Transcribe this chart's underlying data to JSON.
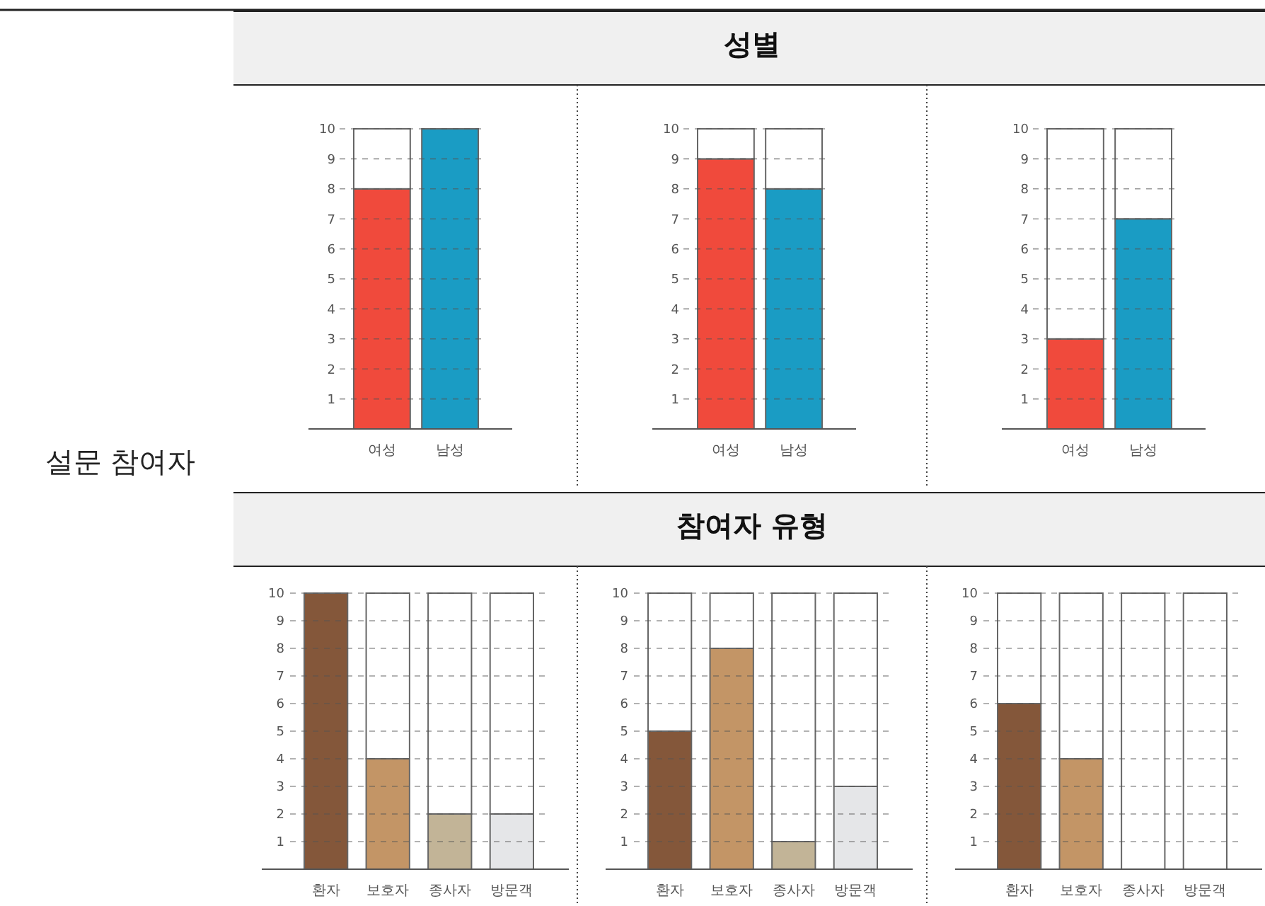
{
  "chart_data": [
    {
      "type": "bar",
      "annotations": [
        "설문 참여자"
      ],
      "categories": [
        "여성",
        "남성"
      ],
      "stacked": true,
      "ylim": [
        0,
        10
      ],
      "yticks": [
        1,
        2,
        3,
        4,
        5,
        6,
        7,
        8,
        9,
        10
      ],
      "grid": "y",
      "series": [
        {
          "colors": [
            "#f04a3c",
            "#1a9cc4"
          ],
          "values": [
            8,
            10
          ]
        },
        {
          "color": "#ffffff",
          "values": [
            2,
            0
          ]
        }
      ]
    },
    {
      "type": "bar",
      "title": "성별",
      "categories": [
        "여성",
        "남성"
      ],
      "stacked": true,
      "ylim": [
        0,
        10
      ],
      "yticks": [
        1,
        2,
        3,
        4,
        5,
        6,
        7,
        8,
        9,
        10
      ],
      "grid": "y",
      "series": [
        {
          "colors": [
            "#f04a3c",
            "#1a9cc4"
          ],
          "values": [
            9,
            8
          ]
        },
        {
          "color": "#ffffff",
          "values": [
            1,
            2
          ]
        }
      ]
    },
    {
      "type": "bar",
      "categories": [
        "여성",
        "남성"
      ],
      "stacked": true,
      "ylim": [
        0,
        10
      ],
      "yticks": [
        1,
        2,
        3,
        4,
        5,
        6,
        7,
        8,
        9,
        10
      ],
      "grid": "y",
      "series": [
        {
          "colors": [
            "#f04a3c",
            "#1a9cc4"
          ],
          "values": [
            3,
            7
          ]
        },
        {
          "color": "#ffffff",
          "values": [
            7,
            3
          ]
        }
      ]
    },
    {
      "type": "bar",
      "categories": [
        "환자",
        "보호자",
        "종사자",
        "방문객"
      ],
      "stacked": true,
      "ylim": [
        0,
        10
      ],
      "yticks": [
        1,
        2,
        3,
        4,
        5,
        6,
        7,
        8,
        9,
        10
      ],
      "grid": "y",
      "series": [
        {
          "colors": [
            "#84573a",
            "#c39566",
            "#c2b497",
            "#e5e6e8"
          ],
          "values": [
            10,
            4,
            2,
            2
          ]
        },
        {
          "color": "#ffffff",
          "values": [
            0,
            6,
            8,
            8
          ]
        }
      ]
    },
    {
      "type": "bar",
      "title": "참여자 유형",
      "categories": [
        "환자",
        "보호자",
        "종사자",
        "방문객"
      ],
      "stacked": true,
      "ylim": [
        0,
        10
      ],
      "yticks": [
        1,
        2,
        3,
        4,
        5,
        6,
        7,
        8,
        9,
        10
      ],
      "grid": "y",
      "series": [
        {
          "colors": [
            "#84573a",
            "#c39566",
            "#c2b497",
            "#e5e6e8"
          ],
          "values": [
            5,
            8,
            1,
            3
          ]
        },
        {
          "color": "#ffffff",
          "values": [
            5,
            2,
            9,
            7
          ]
        }
      ]
    },
    {
      "type": "bar",
      "categories": [
        "환자",
        "보호자",
        "종사자",
        "방문객"
      ],
      "stacked": true,
      "ylim": [
        0,
        10
      ],
      "yticks": [
        1,
        2,
        3,
        4,
        5,
        6,
        7,
        8,
        9,
        10
      ],
      "grid": "y",
      "series": [
        {
          "colors": [
            "#84573a",
            "#c39566",
            "#c2b497",
            "#e5e6e8"
          ],
          "values": [
            6,
            4,
            0,
            0
          ]
        },
        {
          "color": "#ffffff",
          "values": [
            4,
            6,
            10,
            10
          ]
        }
      ]
    }
  ]
}
